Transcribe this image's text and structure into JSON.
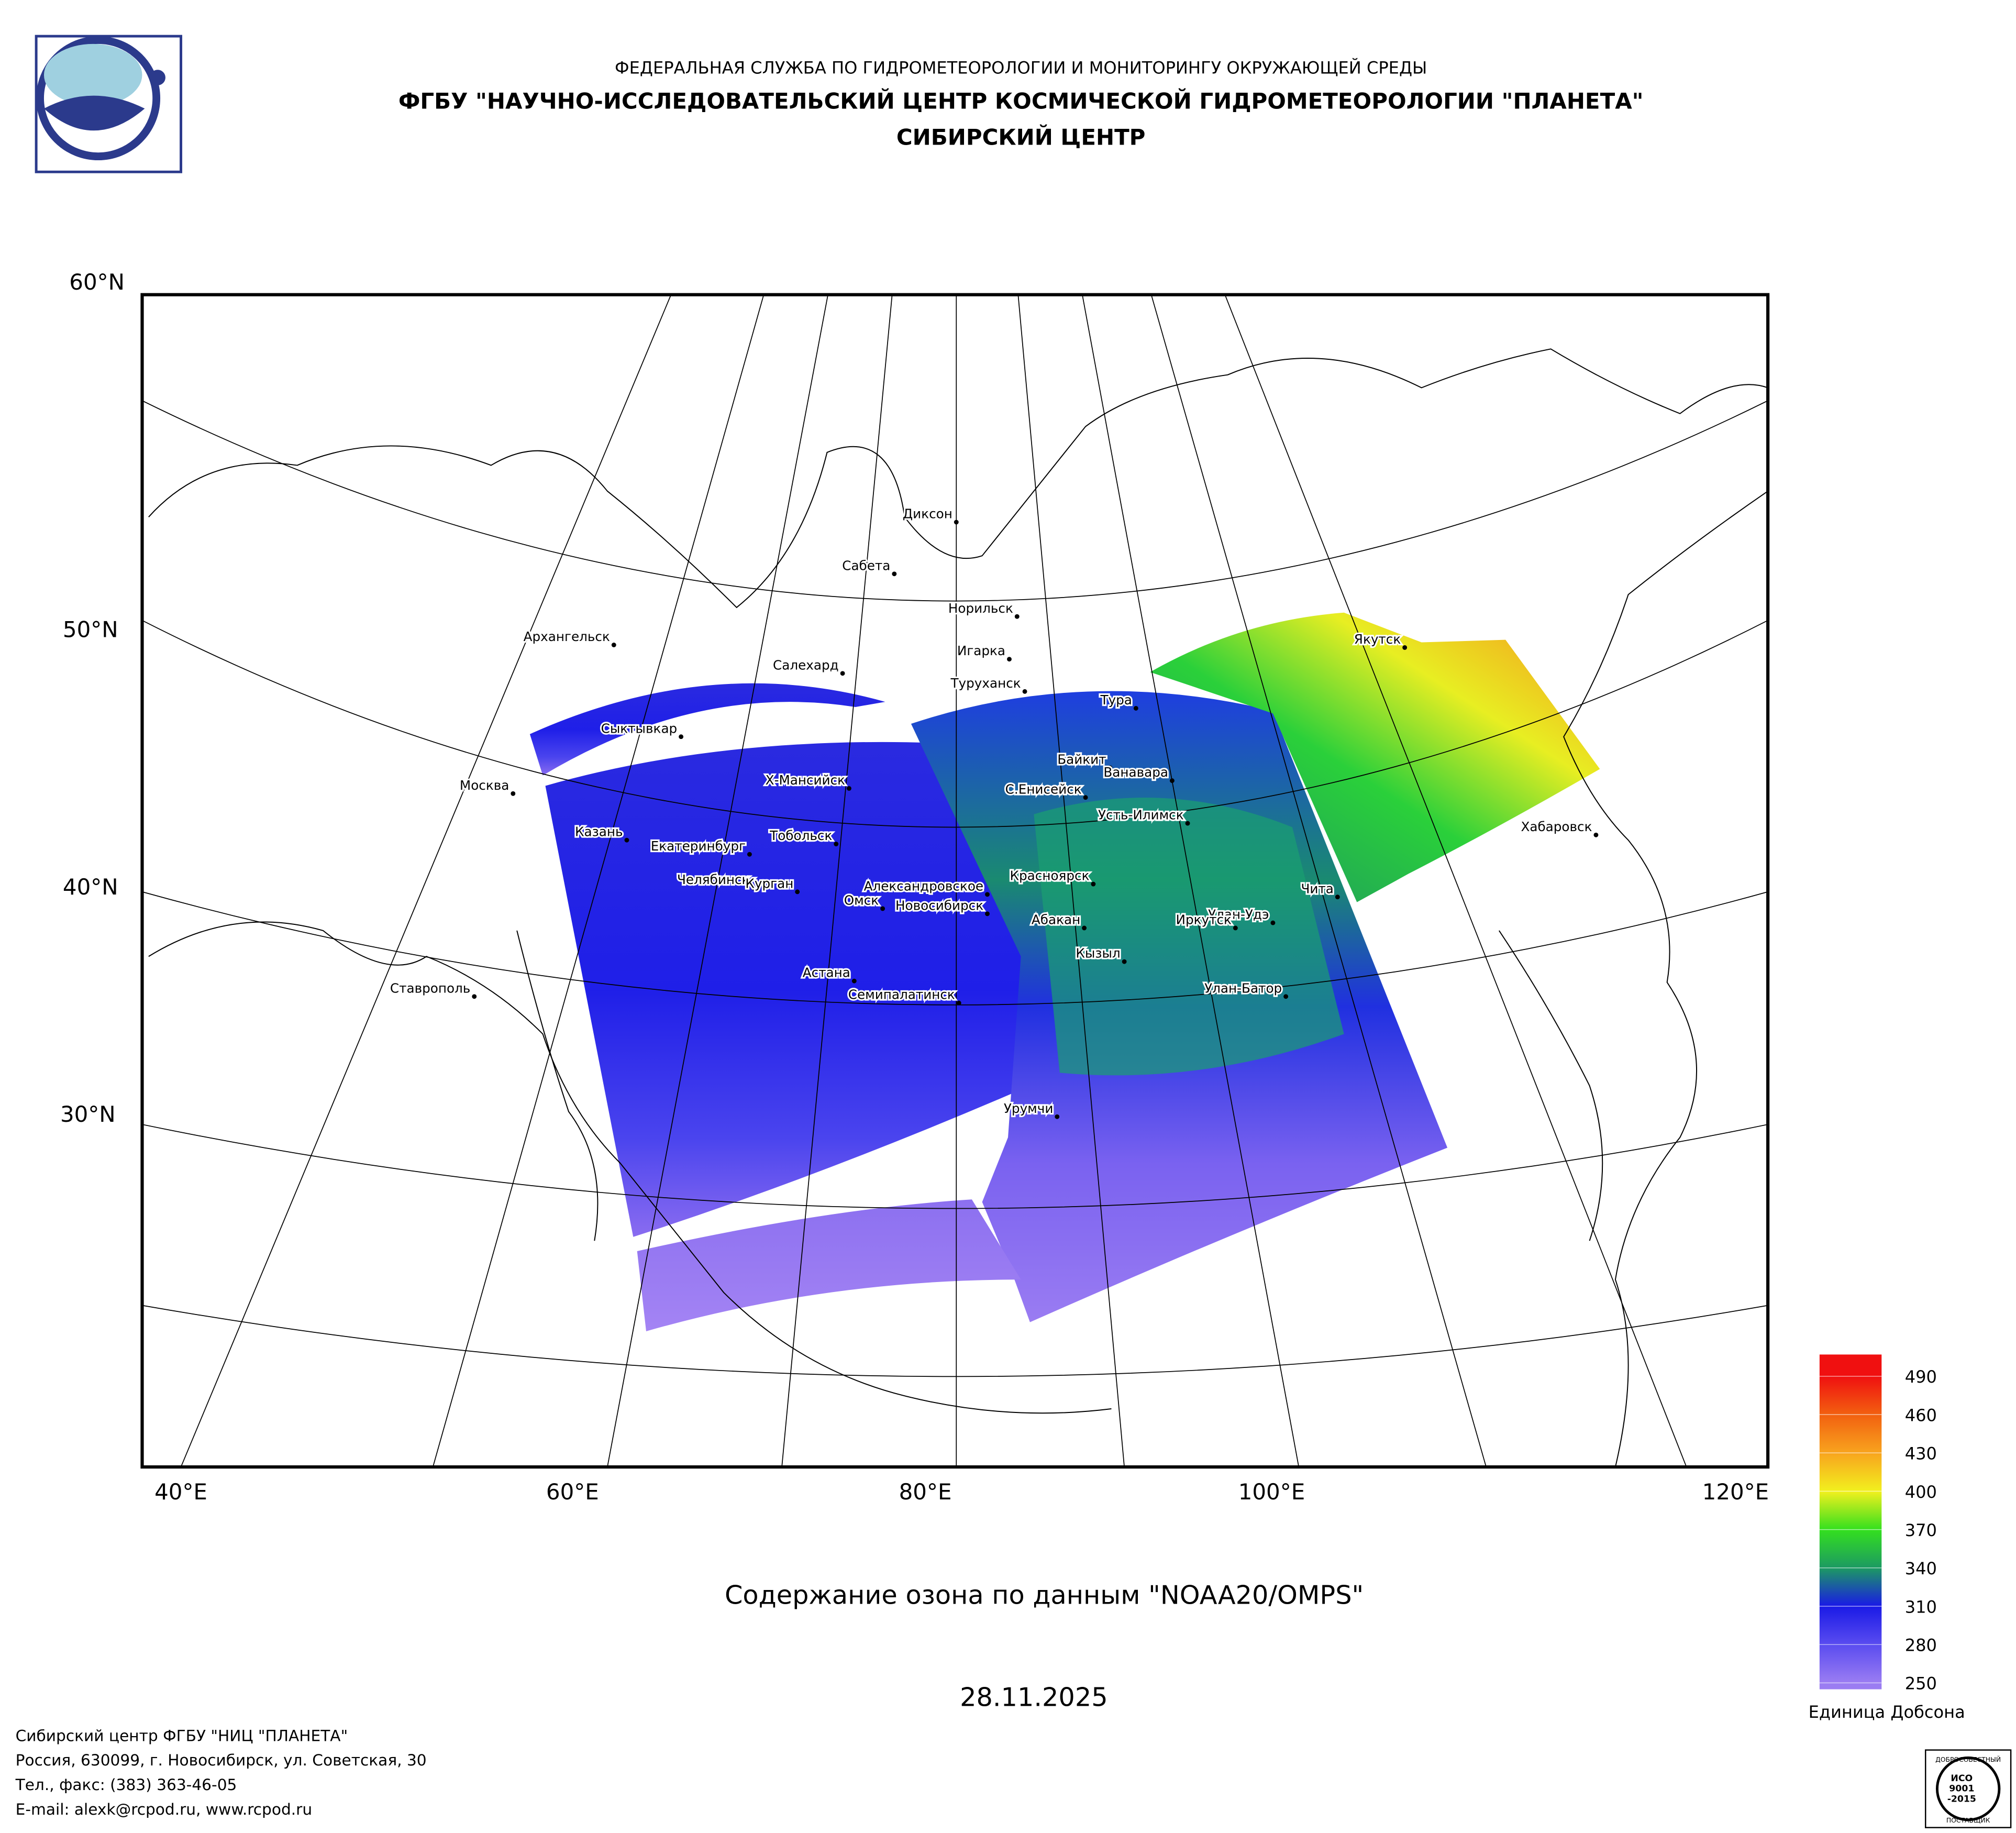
{
  "header": {
    "agency": "ФЕДЕРАЛЬНАЯ СЛУЖБА ПО ГИДРОМЕТЕОРОЛОГИИ И МОНИТОРИНГУ ОКРУЖАЮЩЕЙ СРЕДЫ",
    "center": "ФГБУ \"НАУЧНО-ИССЛЕДОВАТЕЛЬСКИЙ ЦЕНТР КОСМИЧЕСКОЙ ГИДРОМЕТЕОРОЛОГИИ \"ПЛАНЕТА\"",
    "branch": "СИБИРСКИЙ ЦЕНТР"
  },
  "map": {
    "lat_labels": [
      "60°N",
      "50°N",
      "40°N",
      "30°N"
    ],
    "lon_labels": [
      "40°E",
      "60°E",
      "80°E",
      "100°E",
      "120°E"
    ],
    "cities": [
      "Диксон",
      "Сабета",
      "Норильск",
      "Игарка",
      "Туруханск",
      "Салехард",
      "Тура",
      "Якутск",
      "Сыктывкар",
      "Архангельск",
      "Москва",
      "Байкит",
      "Ванавара",
      "Х-Мансийск",
      "С.Енисейск",
      "Усть-Илимск",
      "Хабаровск",
      "Казань",
      "Екатеринбург",
      "Тобольск",
      "Челябинск",
      "Курган",
      "Красноярск",
      "Чита",
      "Александровское",
      "Омск",
      "Новосибирск",
      "Абакан",
      "Улан-Удэ",
      "Иркутск",
      "Кызыл",
      "Астана",
      "Улан-Батор",
      "Ставрополь",
      "Семипалатинск",
      "Урумчи"
    ]
  },
  "colorbar": {
    "ticks": [
      250,
      280,
      310,
      340,
      370,
      400,
      430,
      460,
      490
    ],
    "range": [
      245,
      507
    ],
    "colors": [
      "#9b7df2",
      "#5a4cf0",
      "#1a1ae6",
      "#1c9a62",
      "#34e01e",
      "#f2f01e",
      "#f8a41e",
      "#f26010",
      "#f01010"
    ],
    "unit_label": "Единица Добсона"
  },
  "title": "Содержание озона по данным \"NOAA20/OMPS\"",
  "date": "28.11.2025",
  "footer": [
    "Сибирский центр ФГБУ \"НИЦ \"ПЛАНЕТА\"",
    "Россия, 630099, г. Новосибирск, ул. Советская, 30",
    "Тел., факс: (383) 363-46-05",
    "E-mail: alexk@rcpod.ru, www.rcpod.ru"
  ],
  "badge": {
    "top": "ДОБРОСОВЕСТНЫЙ",
    "lines": [
      "ИСО",
      "9001",
      "-2015"
    ],
    "bottom": "ПОСТАВЩИК"
  }
}
